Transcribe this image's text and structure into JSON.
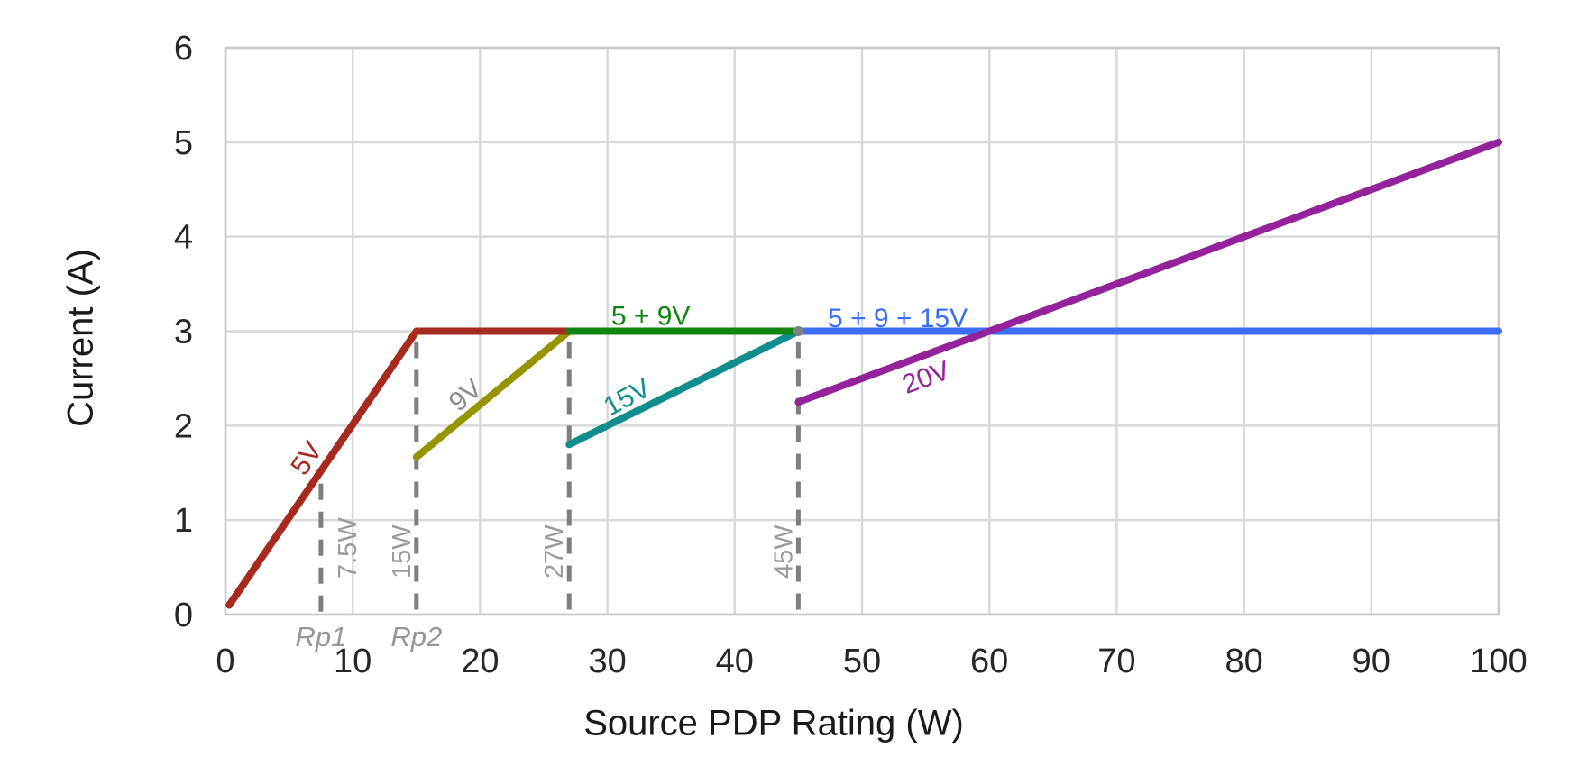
{
  "chart_data": {
    "type": "line",
    "xlabel": "Source PDP Rating (W)",
    "ylabel": "Current (A)",
    "xlim": [
      0,
      100
    ],
    "ylim": [
      0,
      6
    ],
    "x_ticks": [
      0,
      10,
      20,
      30,
      40,
      50,
      60,
      70,
      80,
      90,
      100
    ],
    "y_ticks": [
      0,
      1,
      2,
      3,
      4,
      5,
      6
    ],
    "grid": true,
    "legend": "inline-labels",
    "series": [
      {
        "name": "9V",
        "color": "#969400",
        "points": [
          [
            15,
            1.667
          ],
          [
            27,
            3
          ]
        ],
        "label": {
          "text": "9V",
          "at": [
            18.8,
            2.33
          ],
          "rotate": -40,
          "color": "#8C8C8C"
        }
      },
      {
        "name": "15V",
        "color": "#108E8E",
        "points": [
          [
            27,
            1.8
          ],
          [
            45,
            3
          ]
        ],
        "label": {
          "text": "15V",
          "at": [
            31.5,
            2.31
          ],
          "rotate": -28,
          "color": "#108E8E"
        }
      },
      {
        "name": "5V",
        "color": "#A62A1D",
        "points": [
          [
            0.3,
            0.1
          ],
          [
            15,
            3
          ],
          [
            27,
            3
          ]
        ],
        "label": {
          "text": "5V",
          "at": [
            6.3,
            1.66
          ],
          "rotate": -56,
          "color": "#A62A1D"
        }
      },
      {
        "name": "5+9V",
        "color": "#118511",
        "points": [
          [
            27,
            3
          ],
          [
            45,
            3
          ]
        ],
        "label": {
          "text": "5 + 9V",
          "at": [
            33.4,
            3.17
          ],
          "rotate": 0,
          "color": "#118511"
        }
      },
      {
        "name": "5+9+15V",
        "color": "#3C6EF5",
        "points": [
          [
            45,
            3
          ],
          [
            100,
            3
          ]
        ],
        "label": {
          "text": "5 + 9 + 15V",
          "at": [
            52.8,
            3.15
          ],
          "rotate": 0,
          "color": "#3C6EF5"
        }
      },
      {
        "name": "20V",
        "color": "#94239B",
        "points": [
          [
            45,
            2.25
          ],
          [
            100,
            5
          ]
        ],
        "label": {
          "text": "20V",
          "at": [
            55.0,
            2.52
          ],
          "rotate": -20,
          "color": "#94239B"
        }
      }
    ],
    "guides": [
      {
        "x": 7.5,
        "y_top": 1.5,
        "watt_label": "7.5W",
        "rp_label": "Rp1",
        "label_side": "right",
        "dot_top": false
      },
      {
        "x": 15,
        "y_top": 3,
        "watt_label": "15W",
        "rp_label": "Rp2",
        "label_side": "left",
        "dot_top": false
      },
      {
        "x": 27,
        "y_top": 3,
        "watt_label": "27W",
        "rp_label": "",
        "label_side": "left",
        "dot_top": false
      },
      {
        "x": 45,
        "y_top": 3,
        "watt_label": "45W",
        "rp_label": "",
        "label_side": "left",
        "dot_top": true
      }
    ],
    "colors": {
      "gridline": "#D9D9D9",
      "plot_border": "#C9C9C9",
      "guide_dash": "#7F7F7F",
      "guide_watt_label": "#9B9B9B",
      "guide_rp_label": "#969696",
      "tick_label": "#262626",
      "axis_title": "#1A1A1A",
      "junction_dot": "#7F7F7F",
      "background": "#FFFFFF"
    }
  }
}
